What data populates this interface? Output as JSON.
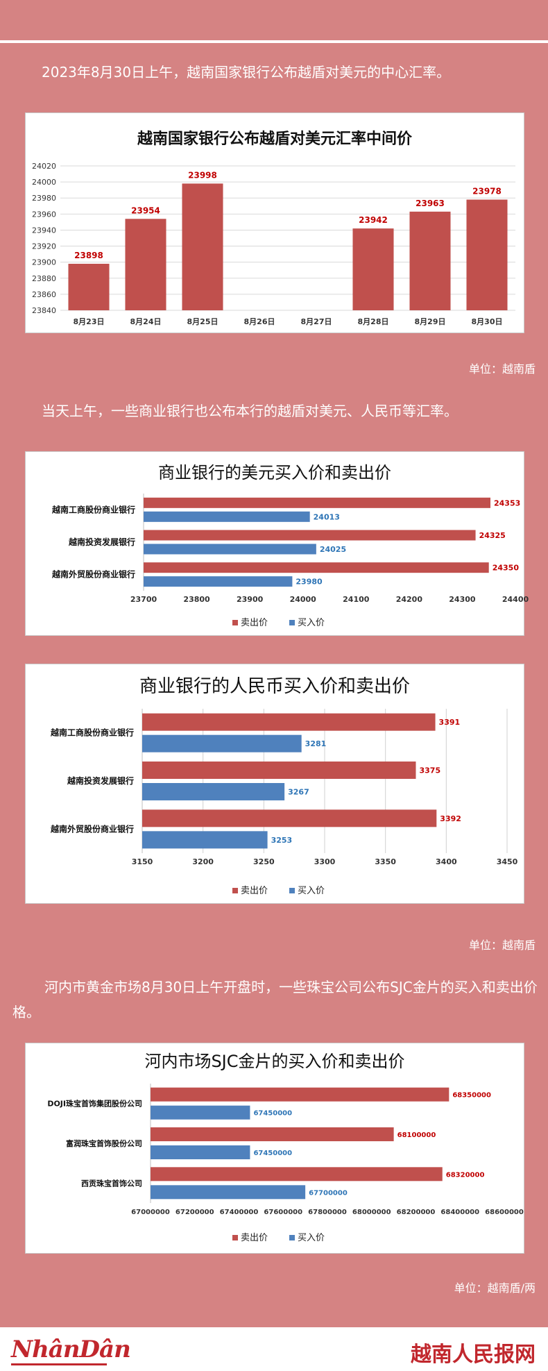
{
  "intro1": "2023年8月30日上午，越南国家银行公布越盾对美元的中心汇率。",
  "unit1": "单位：越南盾",
  "intro2": "当天上午，一些商业银行也公布本行的越盾对美元、人民币等汇率。",
  "unit2": "单位：越南盾",
  "intro3": "河内市黄金市场8月30日上午开盘时，一些珠宝公司公布SJC金片的买入和卖出价格。",
  "unit3": "单位：越南盾/两",
  "footer": {
    "left_logo": "NhânDân",
    "right_logo": "越南人民报网"
  },
  "colors": {
    "sell": "#c0504d",
    "buy": "#4f81bd",
    "sell_label": "#c00000",
    "buy_label": "#2e75b6"
  },
  "chart_data": [
    {
      "type": "bar",
      "title": "越南国家银行公布越盾对美元汇率中间价",
      "categories": [
        "8月23日",
        "8月24日",
        "8月25日",
        "8月26日",
        "8月27日",
        "8月28日",
        "8月29日",
        "8月30日"
      ],
      "values": [
        23898,
        23954,
        23998,
        null,
        null,
        23942,
        23963,
        23978
      ],
      "ylim": [
        23840,
        24020
      ],
      "yticks": [
        23840,
        23860,
        23880,
        23900,
        23920,
        23940,
        23960,
        23980,
        24000,
        24020
      ],
      "grid": true
    },
    {
      "type": "bar",
      "orientation": "horizontal",
      "title": "商业银行的美元买入价和卖出价",
      "categories": [
        "越南工商股份商业银行",
        "越南投资发展银行",
        "越南外贸股份商业银行"
      ],
      "series": [
        {
          "name": "卖出价",
          "values": [
            24353,
            24325,
            24350
          ]
        },
        {
          "name": "买入价",
          "values": [
            24013,
            24025,
            23980
          ]
        }
      ],
      "xlim": [
        23700,
        24400
      ],
      "xticks": [
        23700,
        23800,
        23900,
        24000,
        24100,
        24200,
        24300,
        24400
      ],
      "legend": "bottom",
      "grid": false
    },
    {
      "type": "bar",
      "orientation": "horizontal",
      "title": "商业银行的人民币买入价和卖出价",
      "categories": [
        "越南工商股份商业银行",
        "越南投资发展银行",
        "越南外贸股份商业银行"
      ],
      "series": [
        {
          "name": "卖出价",
          "values": [
            3391,
            3375,
            3392
          ]
        },
        {
          "name": "买入价",
          "values": [
            3281,
            3267,
            3253
          ]
        }
      ],
      "xlim": [
        3150,
        3450
      ],
      "xticks": [
        3150,
        3200,
        3250,
        3300,
        3350,
        3400,
        3450
      ],
      "legend": "bottom",
      "grid": true
    },
    {
      "type": "bar",
      "orientation": "horizontal",
      "title": "河内市场SJC金片的买入价和卖出价",
      "categories": [
        "DOJI珠宝首饰集团股份公司",
        "富润珠宝首饰股份公司",
        "西贡珠宝首饰公司"
      ],
      "series": [
        {
          "name": "卖出价",
          "values": [
            68350000,
            68100000,
            68320000
          ]
        },
        {
          "name": "买入价",
          "values": [
            67450000,
            67450000,
            67700000
          ]
        }
      ],
      "xlim": [
        67000000,
        68600000
      ],
      "xticks": [
        67000000,
        67200000,
        67400000,
        67600000,
        67800000,
        68000000,
        68200000,
        68400000,
        68600000
      ],
      "legend": "bottom",
      "grid": false
    }
  ]
}
